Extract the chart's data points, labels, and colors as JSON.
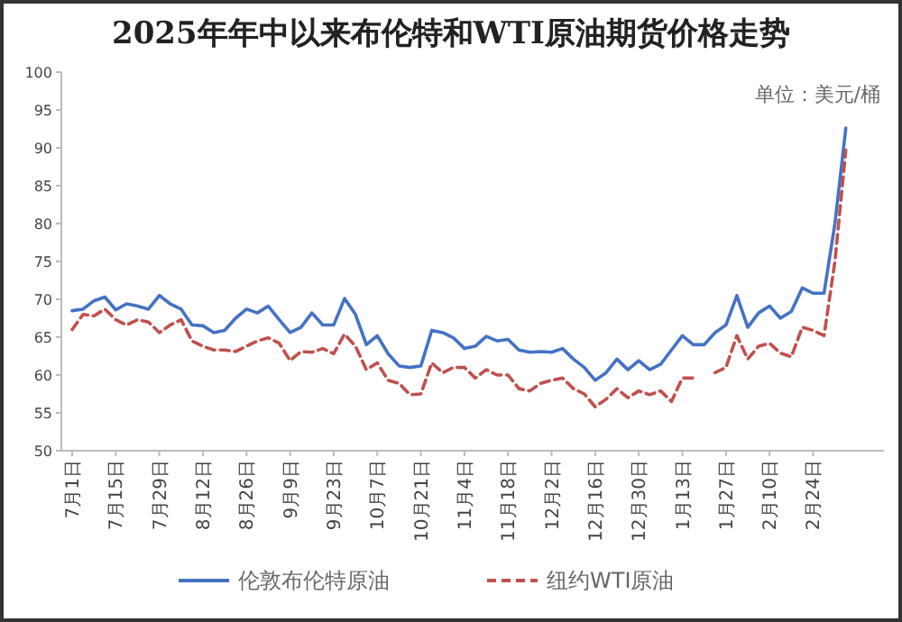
{
  "chart_data": {
    "type": "line",
    "title": "2025年年中以来布伦特和WTI原油期货价格走势",
    "annotations": [
      "单位：美元/桶"
    ],
    "categories": [
      "7月1日",
      null,
      null,
      null,
      "7月15日",
      null,
      null,
      null,
      "7月29日",
      null,
      null,
      null,
      "8月12日",
      null,
      null,
      null,
      "8月26日",
      null,
      null,
      null,
      "9月9日",
      null,
      null,
      null,
      "9月23日",
      null,
      null,
      null,
      "10月7日",
      null,
      null,
      null,
      "10月21日",
      null,
      null,
      null,
      "11月4日",
      null,
      null,
      null,
      "11月18日",
      null,
      null,
      null,
      "12月2日",
      null,
      null,
      null,
      "12月16日",
      null,
      null,
      null,
      "12月30日",
      null,
      null,
      null,
      "1月13日",
      null,
      null,
      null,
      "1月27日",
      null,
      null,
      null,
      "2月10日",
      null,
      null,
      null,
      "2月24日",
      null,
      null,
      null
    ],
    "ylim": [
      50,
      100
    ],
    "yticks": [
      50,
      55,
      60,
      65,
      70,
      75,
      80,
      85,
      90,
      95,
      100
    ],
    "grid": false,
    "legend": "bottom",
    "marker": "none",
    "series": [
      {
        "name": "伦敦布伦特原油",
        "color": "#4472c4",
        "line_style": "solid",
        "values": [
          68.5,
          68.7,
          69.8,
          70.3,
          68.6,
          69.4,
          69.1,
          68.7,
          70.5,
          69.4,
          68.7,
          66.6,
          66.5,
          65.6,
          65.9,
          67.5,
          68.7,
          68.2,
          69.1,
          67.3,
          65.6,
          66.3,
          68.2,
          66.6,
          66.6,
          70.1,
          68.0,
          64.0,
          65.2,
          62.8,
          61.2,
          61.0,
          61.2,
          65.9,
          65.6,
          64.9,
          63.5,
          63.8,
          65.1,
          64.5,
          64.7,
          63.3,
          63.0,
          63.1,
          63.0,
          63.5,
          62.1,
          61.0,
          59.3,
          60.3,
          62.1,
          60.7,
          61.9,
          60.7,
          61.4,
          63.3,
          65.2,
          64.0,
          64.0,
          65.6,
          66.6,
          70.5,
          66.3,
          68.2,
          69.1,
          67.5,
          68.4,
          71.5,
          70.8,
          70.8,
          80.0,
          92.6
        ]
      },
      {
        "name": "纽约WTI原油",
        "color": "#c0504d",
        "line_style": "dashed",
        "values": [
          66.0,
          68.0,
          67.8,
          68.7,
          67.3,
          66.6,
          67.3,
          67.0,
          65.6,
          66.6,
          67.3,
          64.5,
          63.8,
          63.3,
          63.3,
          63.1,
          63.8,
          64.5,
          64.9,
          64.2,
          61.9,
          63.1,
          63.0,
          63.5,
          62.8,
          65.4,
          63.8,
          60.7,
          61.6,
          59.3,
          58.9,
          57.4,
          57.5,
          61.6,
          60.3,
          61.0,
          61.0,
          59.6,
          60.7,
          60.0,
          60.0,
          58.2,
          57.9,
          58.9,
          59.3,
          59.6,
          58.2,
          57.5,
          55.8,
          56.8,
          58.2,
          57.0,
          57.9,
          57.4,
          57.9,
          56.5,
          59.6,
          59.6,
          null,
          60.3,
          61.0,
          65.2,
          62.1,
          63.8,
          64.2,
          62.9,
          62.4,
          66.3,
          65.9,
          65.2,
          75.0,
          89.7
        ]
      }
    ]
  }
}
